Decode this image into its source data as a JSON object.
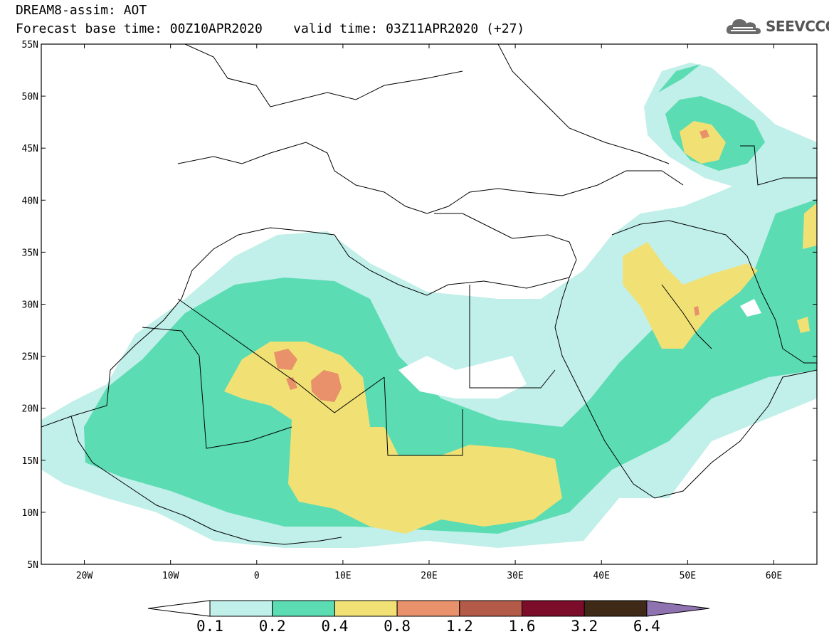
{
  "header": {
    "line1": "DREAM8-assim: AOT",
    "line2": "Forecast base time: 00Z10APR2020    valid time: 03Z11APR2020 (+27)"
  },
  "logo": {
    "text": "SEEVCCC",
    "icon": "cloud-icon"
  },
  "map": {
    "lat_labels": [
      "55N",
      "50N",
      "45N",
      "40N",
      "35N",
      "30N",
      "25N",
      "20N",
      "15N",
      "10N",
      "5N"
    ],
    "lon_labels": [
      "20W",
      "10W",
      "0",
      "10E",
      "20E",
      "30E",
      "40E",
      "50E",
      "60E"
    ],
    "lat_range": [
      5,
      55
    ],
    "lon_range": [
      -25,
      65
    ]
  },
  "legend": {
    "labels": [
      "0.1",
      "0.2",
      "0.4",
      "0.8",
      "1.2",
      "1.6",
      "3.2",
      "6.4"
    ],
    "colors": [
      "#ffffff",
      "#c1efe9",
      "#5bdcb3",
      "#f1e175",
      "#e8916a",
      "#b45a48",
      "#7b0d2a",
      "#3e2a17",
      "#8f72b0"
    ]
  },
  "chart_data": {
    "type": "heatmap",
    "title": "DREAM8-assim: AOT",
    "levels": [
      0.1,
      0.2,
      0.4,
      0.8,
      1.2,
      1.6,
      3.2,
      6.4
    ],
    "xlim": [
      -25,
      65
    ],
    "ylim": [
      5,
      55
    ]
  }
}
